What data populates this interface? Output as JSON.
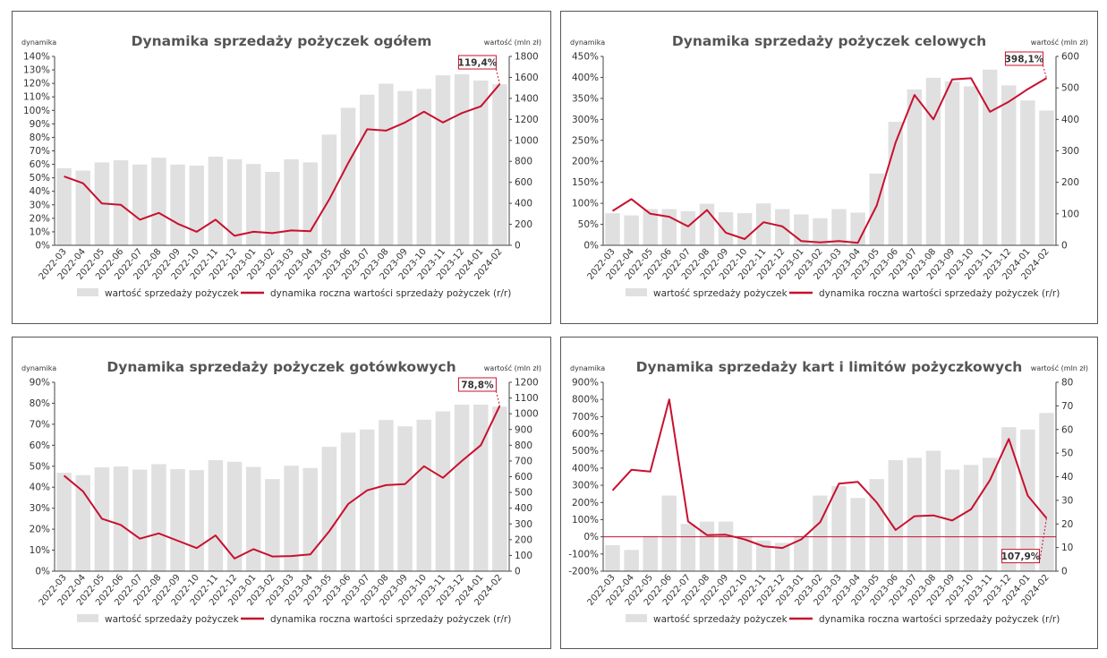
{
  "chart_data": [
    {
      "type": "bar",
      "title": "Dynamika sprzedaży pożyczek ogółem",
      "left_axis_label": "dynamika",
      "right_axis_label": "wartość (mln zł)",
      "categories": [
        "2022-03",
        "2022-04",
        "2022-05",
        "2022-06",
        "2022-07",
        "2022-08",
        "2022-09",
        "2022-10",
        "2022-11",
        "2022-12",
        "2023-01",
        "2023-02",
        "2023-03",
        "2023-04",
        "2023-05",
        "2023-06",
        "2023-07",
        "2023-08",
        "2023-09",
        "2023-10",
        "2023-11",
        "2023-12",
        "2024-01",
        "2024-02"
      ],
      "left_ticks": [
        "0%",
        "10%",
        "20%",
        "30%",
        "40%",
        "50%",
        "60%",
        "70%",
        "80%",
        "90%",
        "100%",
        "110%",
        "120%",
        "130%",
        "140%"
      ],
      "right_ticks": [
        "0",
        "200",
        "400",
        "600",
        "800",
        "1000",
        "1200",
        "1400",
        "1600",
        "1800"
      ],
      "ylim_left": [
        0,
        1.4
      ],
      "ylim_right": [
        0,
        1800
      ],
      "series": [
        {
          "name": "wartość sprzedaży pożyczek",
          "type": "bar",
          "axis": "right",
          "color": "#e0e0e0",
          "values": [
            735,
            712,
            790,
            810,
            770,
            835,
            770,
            760,
            845,
            820,
            775,
            700,
            820,
            790,
            1055,
            1310,
            1435,
            1540,
            1470,
            1490,
            1620,
            1630,
            1570,
            1535
          ]
        },
        {
          "name": "dynamika roczna wartości sprzedaży pożyczek (r/r)",
          "type": "line",
          "axis": "left",
          "color": "#c8102e",
          "values": [
            0.51,
            0.46,
            0.31,
            0.3,
            0.19,
            0.24,
            0.16,
            0.1,
            0.19,
            0.07,
            0.1,
            0.09,
            0.11,
            0.105,
            0.34,
            0.61,
            0.86,
            0.85,
            0.91,
            0.99,
            0.91,
            0.98,
            1.03,
            1.194
          ]
        }
      ],
      "callout": "119,4%",
      "legend_position": "bottom",
      "grid": false
    },
    {
      "type": "bar",
      "title": "Dynamika sprzedaży pożyczek celowych",
      "left_axis_label": "dynamika",
      "right_axis_label": "wartość (mln zł)",
      "categories": [
        "2022-03",
        "2022-04",
        "2022-05",
        "2022-06",
        "2022-07",
        "2022-08",
        "2022-09",
        "2022-10",
        "2022-11",
        "2022-12",
        "2023-01",
        "2023-02",
        "2023-03",
        "2023-04",
        "2023-05",
        "2023-06",
        "2023-07",
        "2023-08",
        "2023-09",
        "2023-10",
        "2023-11",
        "2023-12",
        "2024-01",
        "2024-02"
      ],
      "left_ticks": [
        "0%",
        "50%",
        "100%",
        "150%",
        "200%",
        "250%",
        "300%",
        "350%",
        "400%",
        "450%"
      ],
      "right_ticks": [
        "0",
        "100",
        "200",
        "300",
        "400",
        "500",
        "600"
      ],
      "ylim_left": [
        0,
        4.5
      ],
      "ylim_right": [
        0,
        600
      ],
      "series": [
        {
          "name": "wartość sprzedaży pożyczek",
          "type": "bar",
          "axis": "right",
          "color": "#e0e0e0",
          "values": [
            102,
            95,
            115,
            115,
            108,
            132,
            105,
            102,
            133,
            115,
            98,
            86,
            115,
            104,
            228,
            392,
            495,
            532,
            520,
            505,
            558,
            508,
            460,
            428
          ]
        },
        {
          "name": "dynamika roczna wartości sprzedaży pożyczek (r/r)",
          "type": "line",
          "axis": "left",
          "color": "#c8102e",
          "values": [
            0.82,
            1.1,
            0.75,
            0.68,
            0.45,
            0.84,
            0.3,
            0.15,
            0.55,
            0.45,
            0.1,
            0.07,
            0.1,
            0.06,
            0.95,
            2.45,
            3.58,
            3.0,
            3.95,
            3.98,
            3.18,
            3.42,
            3.72,
            3.981
          ]
        }
      ],
      "callout": "398,1%",
      "legend_position": "bottom",
      "grid": false
    },
    {
      "type": "bar",
      "title": "Dynamika sprzedaży pożyczek gotówkowych",
      "left_axis_label": "dynamika",
      "right_axis_label": "wartość (mln zł)",
      "categories": [
        "2022-03",
        "2022-04",
        "2022-05",
        "2022-06",
        "2022-07",
        "2022-08",
        "2022-09",
        "2022-10",
        "2022-11",
        "2022-12",
        "2023-01",
        "2023-02",
        "2023-03",
        "2023-04",
        "2023-05",
        "2023-06",
        "2023-07",
        "2023-08",
        "2023-09",
        "2023-10",
        "2023-11",
        "2023-12",
        "2024-01",
        "2024-02"
      ],
      "left_ticks": [
        "0%",
        "10%",
        "20%",
        "30%",
        "40%",
        "50%",
        "60%",
        "70%",
        "80%",
        "90%"
      ],
      "right_ticks": [
        "0",
        "100",
        "200",
        "300",
        "400",
        "500",
        "600",
        "700",
        "800",
        "900",
        "1000",
        "1100",
        "1200"
      ],
      "ylim_left": [
        0,
        0.9
      ],
      "ylim_right": [
        0,
        1200
      ],
      "series": [
        {
          "name": "wartość sprzedaży pożyczek",
          "type": "bar",
          "axis": "right",
          "color": "#e0e0e0",
          "values": [
            625,
            610,
            660,
            665,
            645,
            680,
            648,
            642,
            705,
            695,
            662,
            585,
            670,
            655,
            790,
            880,
            900,
            960,
            920,
            962,
            1015,
            1058,
            1058,
            1045
          ]
        },
        {
          "name": "dynamika roczna wartości sprzedaży pożyczek (r/r)",
          "type": "line",
          "axis": "left",
          "color": "#c8102e",
          "values": [
            0.455,
            0.38,
            0.25,
            0.22,
            0.155,
            0.18,
            0.145,
            0.11,
            0.17,
            0.06,
            0.105,
            0.07,
            0.072,
            0.08,
            0.19,
            0.32,
            0.385,
            0.41,
            0.415,
            0.5,
            0.445,
            0.525,
            0.6,
            0.788
          ]
        }
      ],
      "callout": "78,8%",
      "legend_position": "bottom",
      "grid": false
    },
    {
      "type": "bar",
      "title": "Dynamika sprzedaży kart i limitów pożyczkowych",
      "left_axis_label": "dynamika",
      "right_axis_label": "wartość (mln zł)",
      "categories": [
        "2022-03",
        "2022-04",
        "2022-05",
        "2022-06",
        "2022-07",
        "2022-08",
        "2022-09",
        "2022-10",
        "2022-11",
        "2022-12",
        "2023-01",
        "2023-02",
        "2023-03",
        "2023-04",
        "2023-05",
        "2023-06",
        "2023-07",
        "2023-08",
        "2023-09",
        "2023-10",
        "2023-11",
        "2023-12",
        "2024-01",
        "2024-02"
      ],
      "left_ticks": [
        "-200%",
        "-100%",
        "0%",
        "100%",
        "200%",
        "300%",
        "400%",
        "500%",
        "600%",
        "700%",
        "800%",
        "900%"
      ],
      "right_ticks": [
        "0",
        "10",
        "20",
        "30",
        "40",
        "50",
        "60",
        "70",
        "80"
      ],
      "ylim_left": [
        -2.0,
        9.0
      ],
      "ylim_right": [
        0,
        80
      ],
      "series": [
        {
          "name": "wartość sprzedaży pożyczek",
          "type": "bar",
          "axis": "right",
          "color": "#e0e0e0",
          "values": [
            11,
            9,
            15,
            32,
            20,
            21,
            21,
            15,
            13,
            12,
            15,
            32,
            36,
            31,
            39,
            47,
            48,
            51,
            43,
            45,
            48,
            61,
            60,
            67
          ]
        },
        {
          "name": "dynamika roczna wartości sprzedaży pożyczek (r/r)",
          "type": "line",
          "axis": "left",
          "color": "#c8102e",
          "values": [
            2.7,
            3.9,
            3.8,
            8.0,
            0.9,
            0.1,
            0.12,
            -0.15,
            -0.55,
            -0.65,
            -0.15,
            0.85,
            3.1,
            3.2,
            2.0,
            0.4,
            1.2,
            1.25,
            0.95,
            1.6,
            3.3,
            5.7,
            2.4,
            1.079
          ]
        }
      ],
      "callout": "107,9%",
      "legend_position": "bottom",
      "grid": false
    }
  ]
}
